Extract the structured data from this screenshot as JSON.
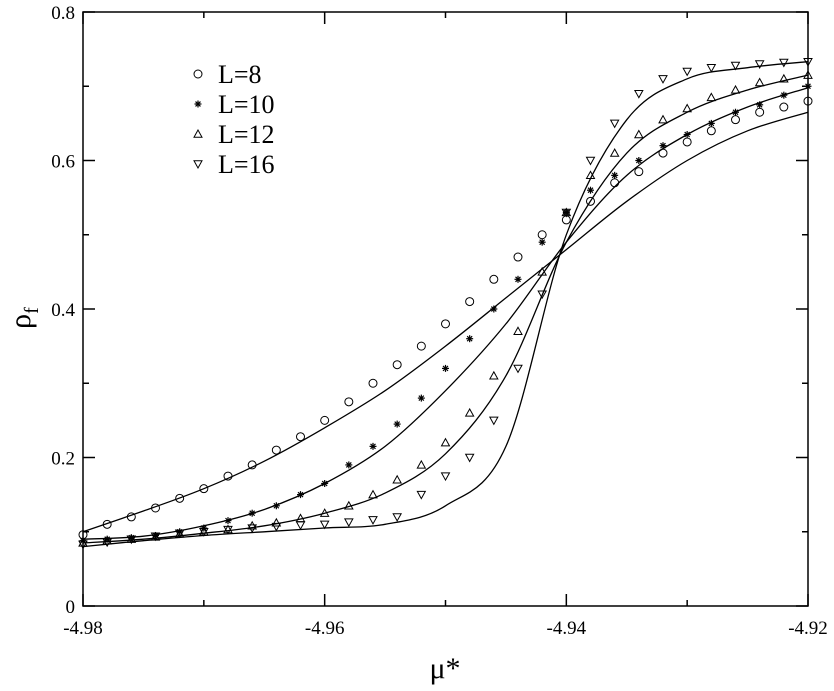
{
  "chart_data": {
    "type": "scatter",
    "title": "",
    "xlabel": "μ*",
    "ylabel_main": "ρ",
    "ylabel_sub": "f",
    "xlim": [
      -4.98,
      -4.92
    ],
    "ylim": [
      0,
      0.8
    ],
    "x_ticks": [
      -4.98,
      -4.96,
      -4.94,
      -4.92
    ],
    "x_tick_labels": [
      "-4.98",
      "-4.96",
      "-4.94",
      "-4.92"
    ],
    "y_ticks": [
      0,
      0.2,
      0.4,
      0.6,
      0.8
    ],
    "y_tick_labels": [
      "0",
      "0.2",
      "0.4",
      "0.6",
      "0.8"
    ],
    "grid": false,
    "legend_position": "top-left",
    "series": [
      {
        "name": "L=8",
        "marker": "circle",
        "x": [
          -4.98,
          -4.978,
          -4.976,
          -4.974,
          -4.972,
          -4.97,
          -4.968,
          -4.966,
          -4.964,
          -4.962,
          -4.96,
          -4.958,
          -4.956,
          -4.954,
          -4.952,
          -4.95,
          -4.948,
          -4.946,
          -4.944,
          -4.942,
          -4.94,
          -4.938,
          -4.936,
          -4.934,
          -4.932,
          -4.93,
          -4.928,
          -4.926,
          -4.924,
          -4.922,
          -4.92
        ],
        "y": [
          0.096,
          0.11,
          0.12,
          0.132,
          0.145,
          0.158,
          0.175,
          0.19,
          0.21,
          0.228,
          0.25,
          0.275,
          0.3,
          0.325,
          0.35,
          0.38,
          0.41,
          0.44,
          0.47,
          0.5,
          0.52,
          0.545,
          0.57,
          0.585,
          0.61,
          0.625,
          0.64,
          0.655,
          0.665,
          0.672,
          0.68
        ],
        "fit_x": [
          -4.98,
          -4.975,
          -4.97,
          -4.965,
          -4.96,
          -4.955,
          -4.95,
          -4.945,
          -4.94,
          -4.935,
          -4.93,
          -4.925,
          -4.92
        ],
        "fit_y": [
          0.1,
          0.128,
          0.158,
          0.195,
          0.24,
          0.29,
          0.35,
          0.415,
          0.48,
          0.545,
          0.6,
          0.64,
          0.665
        ]
      },
      {
        "name": "L=10",
        "marker": "star",
        "x": [
          -4.98,
          -4.978,
          -4.976,
          -4.974,
          -4.972,
          -4.97,
          -4.968,
          -4.966,
          -4.964,
          -4.962,
          -4.96,
          -4.958,
          -4.956,
          -4.954,
          -4.952,
          -4.95,
          -4.948,
          -4.946,
          -4.944,
          -4.942,
          -4.94,
          -4.938,
          -4.936,
          -4.934,
          -4.932,
          -4.93,
          -4.928,
          -4.926,
          -4.924,
          -4.922,
          -4.92
        ],
        "y": [
          0.088,
          0.09,
          0.092,
          0.095,
          0.1,
          0.105,
          0.115,
          0.125,
          0.135,
          0.15,
          0.165,
          0.19,
          0.215,
          0.245,
          0.28,
          0.32,
          0.36,
          0.4,
          0.44,
          0.49,
          0.53,
          0.56,
          0.58,
          0.6,
          0.62,
          0.635,
          0.65,
          0.665,
          0.675,
          0.688,
          0.7
        ],
        "fit_x": [
          -4.98,
          -4.975,
          -4.97,
          -4.965,
          -4.96,
          -4.955,
          -4.95,
          -4.945,
          -4.94,
          -4.935,
          -4.93,
          -4.925,
          -4.92
        ],
        "fit_y": [
          0.09,
          0.094,
          0.108,
          0.13,
          0.165,
          0.215,
          0.29,
          0.38,
          0.49,
          0.58,
          0.635,
          0.672,
          0.698
        ]
      },
      {
        "name": "L=12",
        "marker": "triangle-up",
        "x": [
          -4.98,
          -4.978,
          -4.976,
          -4.974,
          -4.972,
          -4.97,
          -4.968,
          -4.966,
          -4.964,
          -4.962,
          -4.96,
          -4.958,
          -4.956,
          -4.954,
          -4.952,
          -4.95,
          -4.948,
          -4.946,
          -4.944,
          -4.942,
          -4.94,
          -4.938,
          -4.936,
          -4.934,
          -4.932,
          -4.93,
          -4.928,
          -4.926,
          -4.924,
          -4.922,
          -4.92
        ],
        "y": [
          0.085,
          0.088,
          0.09,
          0.093,
          0.097,
          0.1,
          0.103,
          0.108,
          0.112,
          0.118,
          0.125,
          0.135,
          0.15,
          0.17,
          0.19,
          0.22,
          0.26,
          0.31,
          0.37,
          0.45,
          0.53,
          0.58,
          0.61,
          0.635,
          0.655,
          0.67,
          0.685,
          0.695,
          0.705,
          0.71,
          0.715
        ],
        "fit_x": [
          -4.98,
          -4.975,
          -4.97,
          -4.965,
          -4.96,
          -4.955,
          -4.95,
          -4.945,
          -4.94,
          -4.935,
          -4.93,
          -4.925,
          -4.92
        ],
        "fit_y": [
          0.085,
          0.09,
          0.098,
          0.108,
          0.125,
          0.152,
          0.205,
          0.31,
          0.49,
          0.61,
          0.665,
          0.695,
          0.715
        ]
      },
      {
        "name": "L=16",
        "marker": "triangle-down",
        "x": [
          -4.98,
          -4.978,
          -4.976,
          -4.974,
          -4.972,
          -4.97,
          -4.968,
          -4.966,
          -4.964,
          -4.962,
          -4.96,
          -4.958,
          -4.956,
          -4.954,
          -4.952,
          -4.95,
          -4.948,
          -4.946,
          -4.944,
          -4.942,
          -4.94,
          -4.938,
          -4.936,
          -4.934,
          -4.932,
          -4.93,
          -4.928,
          -4.926,
          -4.924,
          -4.922,
          -4.92
        ],
        "y": [
          0.083,
          0.086,
          0.09,
          0.094,
          0.098,
          0.1,
          0.103,
          0.105,
          0.107,
          0.109,
          0.11,
          0.113,
          0.116,
          0.12,
          0.15,
          0.175,
          0.2,
          0.25,
          0.32,
          0.42,
          0.53,
          0.6,
          0.65,
          0.69,
          0.71,
          0.72,
          0.725,
          0.728,
          0.73,
          0.732,
          0.733
        ],
        "fit_x": [
          -4.98,
          -4.975,
          -4.97,
          -4.965,
          -4.96,
          -4.955,
          -4.95,
          -4.945,
          -4.94,
          -4.935,
          -4.93,
          -4.925,
          -4.92
        ],
        "fit_y": [
          0.08,
          0.088,
          0.095,
          0.1,
          0.105,
          0.11,
          0.135,
          0.215,
          0.5,
          0.655,
          0.71,
          0.725,
          0.733
        ]
      }
    ]
  }
}
